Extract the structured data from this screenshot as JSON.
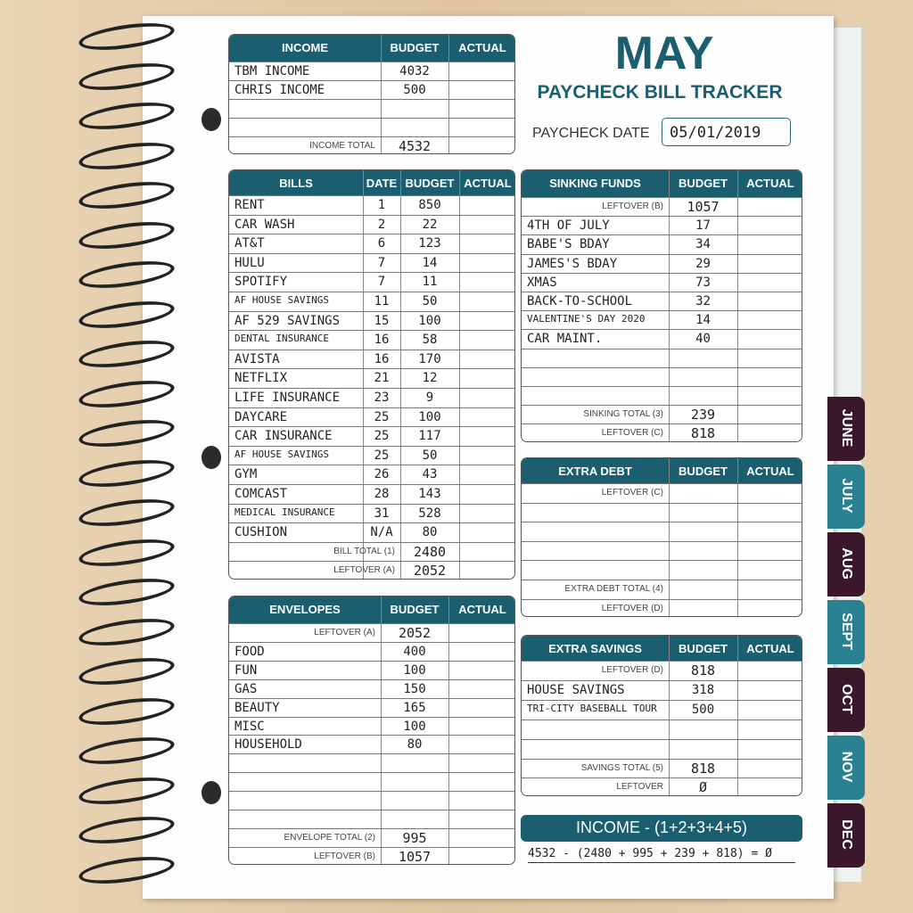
{
  "title": "MAY",
  "subtitle": "PAYCHECK BILL TRACKER",
  "paycheck_date": {
    "label": "PAYCHECK DATE",
    "value": "05/01/2019"
  },
  "income": {
    "headers": [
      "INCOME",
      "BUDGET",
      "ACTUAL"
    ],
    "rows": [
      [
        "TBM INCOME",
        "4032"
      ],
      [
        "CHRIS INCOME",
        "500"
      ]
    ],
    "totals": [
      {
        "label": "INCOME TOTAL",
        "value": "4532"
      }
    ]
  },
  "bills": {
    "headers": [
      "BILLS",
      "DATE",
      "BUDGET",
      "ACTUAL"
    ],
    "rows": [
      [
        "RENT",
        "1",
        "850"
      ],
      [
        "CAR WASH",
        "2",
        "22"
      ],
      [
        "AT&T",
        "6",
        "123"
      ],
      [
        "HULU",
        "7",
        "14"
      ],
      [
        "SPOTIFY",
        "7",
        "11"
      ],
      [
        "AF HOUSE SAVINGS",
        "11",
        "50"
      ],
      [
        "AF 529 SAVINGS",
        "15",
        "100"
      ],
      [
        "DENTAL INSURANCE",
        "16",
        "58"
      ],
      [
        "AVISTA",
        "16",
        "170"
      ],
      [
        "NETFLIX",
        "21",
        "12"
      ],
      [
        "LIFE INSURANCE",
        "23",
        "9"
      ],
      [
        "DAYCARE",
        "25",
        "100"
      ],
      [
        "CAR INSURANCE",
        "25",
        "117"
      ],
      [
        "AF HOUSE SAVINGS",
        "25",
        "50"
      ],
      [
        "GYM",
        "26",
        "43"
      ],
      [
        "COMCAST",
        "28",
        "143"
      ],
      [
        "MEDICAL INSURANCE",
        "31",
        "528"
      ],
      [
        "CUSHION",
        "N/A",
        "80"
      ]
    ],
    "totals": [
      {
        "label": "BILL TOTAL (1)",
        "value": "2480"
      },
      {
        "label": "LEFTOVER (A)",
        "value": "2052"
      }
    ]
  },
  "envelopes": {
    "headers": [
      "ENVELOPES",
      "BUDGET",
      "ACTUAL"
    ],
    "carry": {
      "label": "LEFTOVER (A)",
      "value": "2052"
    },
    "rows": [
      [
        "FOOD",
        "400"
      ],
      [
        "FUN",
        "100"
      ],
      [
        "GAS",
        "150"
      ],
      [
        "BEAUTY",
        "165"
      ],
      [
        "MISC",
        "100"
      ],
      [
        "HOUSEHOLD",
        "80"
      ]
    ],
    "totals": [
      {
        "label": "ENVELOPE TOTAL (2)",
        "value": "995"
      },
      {
        "label": "LEFTOVER (B)",
        "value": "1057"
      }
    ]
  },
  "sinking_funds": {
    "headers": [
      "SINKING FUNDS",
      "BUDGET",
      "ACTUAL"
    ],
    "carry": {
      "label": "LEFTOVER (B)",
      "value": "1057"
    },
    "rows": [
      [
        "4TH OF JULY",
        "17"
      ],
      [
        "BABE'S BDAY",
        "34"
      ],
      [
        "JAMES'S BDAY",
        "29"
      ],
      [
        "XMAS",
        "73"
      ],
      [
        "BACK-TO-SCHOOL",
        "32"
      ],
      [
        "VALENTINE'S DAY 2020",
        "14"
      ],
      [
        "CAR MAINT.",
        "40"
      ]
    ],
    "totals": [
      {
        "label": "SINKING TOTAL (3)",
        "value": "239"
      },
      {
        "label": "LEFTOVER (C)",
        "value": "818"
      }
    ]
  },
  "extra_debt": {
    "headers": [
      "EXTRA DEBT",
      "BUDGET",
      "ACTUAL"
    ],
    "carry": {
      "label": "LEFTOVER (C)"
    },
    "rows": [],
    "totals": [
      {
        "label": "EXTRA DEBT TOTAL (4)"
      },
      {
        "label": "LEFTOVER (D)"
      }
    ]
  },
  "extra_savings": {
    "headers": [
      "EXTRA SAVINGS",
      "BUDGET",
      "ACTUAL"
    ],
    "carry": {
      "label": "LEFTOVER (D)",
      "value": "818"
    },
    "rows": [
      [
        "HOUSE SAVINGS",
        "318"
      ],
      [
        "TRI-CITY BASEBALL TOUR",
        "500"
      ]
    ],
    "totals": [
      {
        "label": "SAVINGS TOTAL (5)",
        "value": "818"
      },
      {
        "label": "LEFTOVER",
        "value": "Ø"
      }
    ]
  },
  "formula": {
    "label": "INCOME - (1+2+3+4+5)",
    "value": "4532 - (2480 + 995 + 239 + 818) = Ø"
  },
  "tabs": [
    "JUNE",
    "JULY",
    "AUG",
    "SEPT",
    "OCT",
    "NOV",
    "DEC"
  ]
}
